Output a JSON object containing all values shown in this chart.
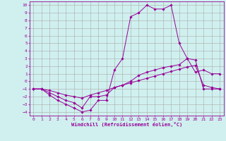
{
  "xlabel": "Windchill (Refroidissement éolien,°C)",
  "bg_color": "#cff0ee",
  "grid_color": "#aaaaaa",
  "line_color": "#990099",
  "xlim": [
    -0.5,
    23.5
  ],
  "ylim": [
    -4.5,
    10.5
  ],
  "xticks": [
    0,
    1,
    2,
    3,
    4,
    5,
    6,
    7,
    8,
    9,
    10,
    11,
    12,
    13,
    14,
    15,
    16,
    17,
    18,
    19,
    20,
    21,
    22,
    23
  ],
  "yticks": [
    -4,
    -3,
    -2,
    -1,
    0,
    1,
    2,
    3,
    4,
    5,
    6,
    7,
    8,
    9,
    10
  ],
  "series1_x": [
    0,
    1,
    2,
    3,
    4,
    5,
    6,
    7,
    8,
    9,
    10,
    11,
    12,
    13,
    14,
    15,
    16,
    17,
    18,
    19,
    20,
    21,
    22,
    23
  ],
  "series1_y": [
    -1,
    -1,
    -1.8,
    -2.5,
    -3,
    -3.5,
    -4,
    -3.8,
    -2.5,
    -2.5,
    1.5,
    3,
    8.5,
    9,
    10,
    9.5,
    9.5,
    10,
    5,
    3,
    1.2,
    1.5,
    1,
    1
  ],
  "series2_x": [
    0,
    1,
    2,
    3,
    4,
    5,
    6,
    7,
    8,
    9,
    10,
    11,
    12,
    13,
    14,
    15,
    16,
    17,
    18,
    19,
    20,
    21,
    22,
    23
  ],
  "series2_y": [
    -1,
    -1,
    -1.5,
    -2,
    -2.5,
    -2.8,
    -3.5,
    -2,
    -2,
    -1.8,
    -0.8,
    -0.5,
    0,
    0.8,
    1.2,
    1.5,
    1.8,
    2,
    2.2,
    3,
    2.8,
    -1,
    -1,
    -1
  ],
  "series3_x": [
    0,
    1,
    2,
    3,
    4,
    5,
    6,
    7,
    8,
    9,
    10,
    11,
    12,
    13,
    14,
    15,
    16,
    17,
    18,
    19,
    20,
    21,
    22,
    23
  ],
  "series3_y": [
    -1,
    -1,
    -1.2,
    -1.5,
    -1.8,
    -2.0,
    -2.2,
    -1.8,
    -1.5,
    -1.2,
    -0.8,
    -0.5,
    -0.2,
    0.1,
    0.4,
    0.7,
    1.0,
    1.3,
    1.6,
    1.9,
    2.1,
    -0.5,
    -0.8,
    -1
  ],
  "marker": "D",
  "markersize": 1.8,
  "linewidth": 0.7,
  "tick_fontsize": 4.5,
  "xlabel_fontsize": 5.0
}
